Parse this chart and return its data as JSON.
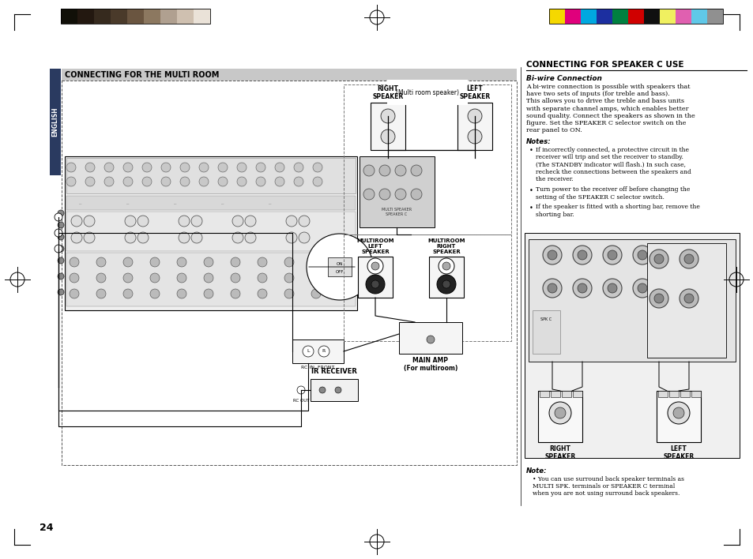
{
  "page_bg": "#ffffff",
  "page_width": 9.54,
  "page_height": 7.08,
  "dpi": 100,
  "top_left_colors": [
    "#111008",
    "#231810",
    "#362a1e",
    "#4a3a2a",
    "#6a5540",
    "#8c7860",
    "#b0a090",
    "#cfc0b0",
    "#eae2d8"
  ],
  "top_right_colors": [
    "#f5d800",
    "#e0007c",
    "#00a8e0",
    "#1c2fa0",
    "#008040",
    "#d00000",
    "#101010",
    "#f0f060",
    "#e060b0",
    "#60c8e8",
    "#909090"
  ],
  "left_section_title": "CONNECTING FOR THE MULTI ROOM",
  "right_section_title": "CONNECTING FOR SPEAKER C USE",
  "right_subtitle": "Bi-wire Connection",
  "right_body": "A bi-wire connection is possible with speakers that\nhave two sets of inputs (for treble and bass).\nThis allows you to drive the treble and bass units\nwith separate channel amps, which enables better\nsound quality. Connect the speakers as shown in the\nfigure. Set the SPEAKER C selector switch on the\nrear panel to ON.",
  "right_notes_title": "Notes:",
  "right_notes": [
    "If incorrectly connected, a protective circuit in the\nreceiver will trip and set the receiver to standby.\n(The STANDBY indicator will flash.) In such case,\nrecheck the connections between the speakers and\nthe receiver.",
    "Turn power to the receiver off before changing the\nsetting of the SPEAKER C selector switch.",
    "If the speaker is fitted with a shorting bar, remove the\nshorting bar."
  ],
  "right_note2_title": "Note:",
  "right_note2": "You can use surround back speaker terminals as\nMULTI SPK. terminals or SPEAKER C terminal\nwhen you are not using surround back speakers.",
  "page_number": "24",
  "english_label": "ENGLISH",
  "multi_room_speaker_label": "(Multi room speaker)",
  "right_speaker_label": "RIGHT\nSPEAKER",
  "left_speaker_label": "LEFT\nSPEAKER",
  "multiroom_left_label": "MULTIROOM\nLEFT\nSPEAKER",
  "multiroom_right_label": "MULTIROOM\nRIGHT\nSPEAKER",
  "main_amp_label": "MAIN AMP\n(For multiroom)",
  "ir_receiver_label": "IR RECEIVER",
  "rc_in_front_label": "RC IN  FRONT",
  "rc_out_label": "RC OUT",
  "right_spk_bottom_label": "RIGHT\nSPEAKER",
  "left_spk_bottom_label": "LEFT\nSPEAKER",
  "l_label": "L",
  "r_label": "R"
}
